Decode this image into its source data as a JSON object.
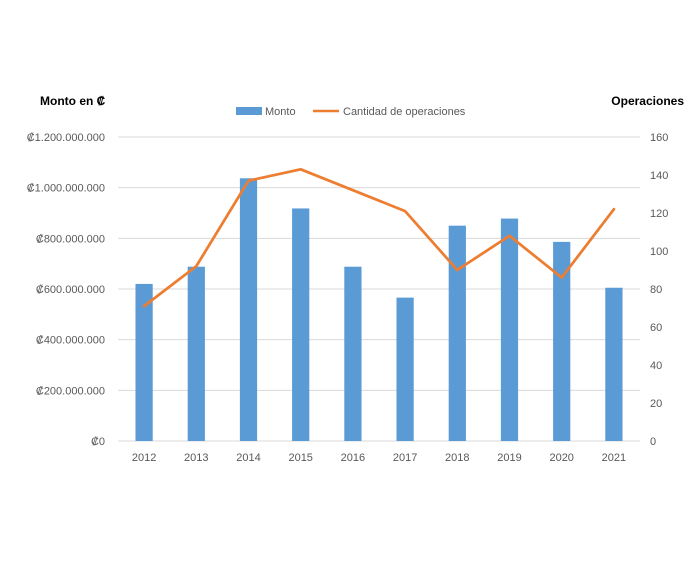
{
  "chart_data": {
    "type": "bar",
    "categories": [
      "2012",
      "2013",
      "2014",
      "2015",
      "2016",
      "2017",
      "2018",
      "2019",
      "2020",
      "2021"
    ],
    "series": [
      {
        "name": "Monto",
        "type": "bar",
        "axis": "left",
        "color": "#5B9BD5",
        "values": [
          620000000,
          688000000,
          1037000000,
          918000000,
          688000000,
          566000000,
          850000000,
          878000000,
          786000000,
          605000000
        ]
      },
      {
        "name": "Cantidad de operaciones",
        "type": "line",
        "axis": "right",
        "color": "#ED7D31",
        "values": [
          71,
          92,
          137,
          143,
          132,
          121,
          90,
          108,
          86,
          122
        ]
      }
    ],
    "ylabel": "Monto en ₡",
    "y2label": "Operaciones",
    "ylim": [
      0,
      1200000000
    ],
    "y2lim": [
      0,
      160
    ],
    "yticks": [
      "₡0",
      "₡200.000.000",
      "₡400.000.000",
      "₡600.000.000",
      "₡800.000.000",
      "₡1.000.000.000",
      "₡1.200.000.000"
    ],
    "y2ticks": [
      "0",
      "20",
      "40",
      "60",
      "80",
      "100",
      "120",
      "140",
      "160"
    ],
    "grid": true,
    "legend": "top-center"
  }
}
